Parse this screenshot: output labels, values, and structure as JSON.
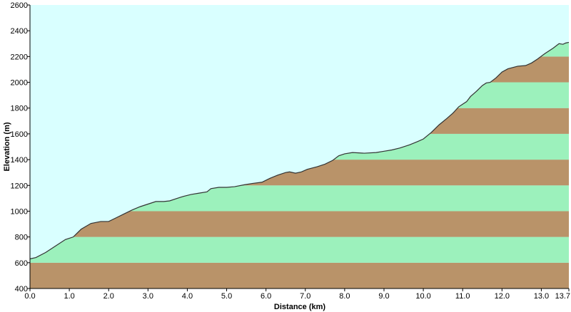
{
  "chart_data": {
    "type": "area",
    "title": "",
    "xlabel": "Distance  (km)",
    "ylabel": "Elevation (m)",
    "xlim": [
      0,
      13.7
    ],
    "ylim": [
      400,
      2600
    ],
    "x_ticks": [
      0,
      1,
      2,
      3,
      4,
      5,
      6,
      7,
      8,
      9,
      10,
      11,
      12,
      13,
      13.7
    ],
    "x_tick_labels": [
      "0.0",
      "1.0",
      "2.0",
      "3.0",
      "4.0",
      "5.0",
      "6.0",
      "7.0",
      "8.0",
      "9.0",
      "10.0",
      "11.0",
      "12.0",
      "13.0",
      "13.7"
    ],
    "y_ticks": [
      400,
      600,
      800,
      1000,
      1200,
      1400,
      1600,
      1800,
      2000,
      2200,
      2400,
      2600
    ],
    "y_tick_labels": [
      "400",
      "600",
      "800",
      "1000",
      "1200",
      "1400",
      "1600",
      "1800",
      "2000",
      "2200",
      "2400",
      "2600"
    ],
    "band_size_m": 200,
    "colors": {
      "sky": "#d9ffff",
      "band_brown": "#b99369",
      "band_green": "#9cf1bc",
      "profile_line": "#333333",
      "axis": "#000000"
    },
    "series": [
      {
        "x": [
          0,
          0.15,
          0.4,
          0.7,
          0.9,
          1.1,
          1.3,
          1.55,
          1.8,
          2.0,
          2.2,
          2.4,
          2.6,
          2.8,
          3.0,
          3.2,
          3.4,
          3.55,
          3.75,
          3.9,
          4.1,
          4.3,
          4.5,
          4.6,
          4.8,
          5.0,
          5.2,
          5.45,
          5.65,
          5.9,
          6.1,
          6.3,
          6.5,
          6.6,
          6.75,
          6.9,
          7.05,
          7.3,
          7.5,
          7.7,
          7.85,
          8.0,
          8.2,
          8.5,
          8.8,
          9.0,
          9.2,
          9.4,
          9.65,
          9.85,
          10.0,
          10.2,
          10.4,
          10.6,
          10.75,
          10.9,
          11.0,
          11.1,
          11.2,
          11.35,
          11.5,
          11.6,
          11.7,
          11.85,
          12.0,
          12.15,
          12.4,
          12.6,
          12.75,
          12.9,
          13.1,
          13.3,
          13.45,
          13.55,
          13.62,
          13.7
        ],
        "y": [
          630,
          640,
          680,
          740,
          780,
          800,
          860,
          905,
          920,
          920,
          950,
          980,
          1010,
          1035,
          1055,
          1075,
          1075,
          1080,
          1100,
          1115,
          1130,
          1140,
          1150,
          1175,
          1185,
          1185,
          1190,
          1205,
          1215,
          1225,
          1255,
          1280,
          1300,
          1305,
          1295,
          1305,
          1325,
          1345,
          1365,
          1395,
          1430,
          1445,
          1455,
          1450,
          1455,
          1465,
          1475,
          1490,
          1515,
          1540,
          1560,
          1610,
          1670,
          1720,
          1760,
          1810,
          1830,
          1850,
          1890,
          1930,
          1975,
          1995,
          2000,
          2035,
          2080,
          2105,
          2125,
          2130,
          2150,
          2180,
          2225,
          2265,
          2300,
          2295,
          2305,
          2310
        ]
      }
    ]
  }
}
